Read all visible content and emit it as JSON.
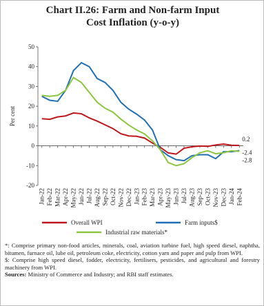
{
  "chart_data": {
    "type": "line",
    "title": "Chart II.26: Farm and Non-farm Input Cost Inflation (y-o-y)",
    "ylabel": "Per cent",
    "categories": [
      "Jan-22",
      "Feb-22",
      "Mar-22",
      "Apr-22",
      "May-22",
      "Jun-22",
      "Jul-22",
      "Aug-22",
      "Sep-22",
      "Oct-22",
      "Nov-22",
      "Dec-22",
      "Jan-23",
      "Feb-23",
      "Mar-23",
      "Apr-23",
      "May-23",
      "Jun-23",
      "Jul-23",
      "Aug-23",
      "Sep-23",
      "Oct-23",
      "Nov-23",
      "Dec-23",
      "Jan-24",
      "Feb-24"
    ],
    "series": [
      {
        "name": "Overall WPI",
        "color": "#c0161c",
        "values": [
          13.7,
          13.4,
          14.6,
          15.1,
          16.6,
          16.2,
          14.1,
          12.5,
          10.6,
          8.7,
          6.1,
          5.0,
          4.8,
          3.9,
          1.4,
          -0.8,
          -3.6,
          -4.2,
          -1.2,
          -0.5,
          -0.1,
          -0.3,
          0.4,
          0.9,
          0.3,
          0.2
        ]
      },
      {
        "name": "Farm inputs$",
        "color": "#1f6fb5",
        "values": [
          25,
          23,
          22.5,
          28,
          38,
          42,
          40,
          34,
          32,
          28,
          22,
          18.5,
          16,
          13,
          8,
          -2,
          -5,
          -7,
          -7.5,
          -5,
          -4.5,
          -4.5,
          -6.5,
          -3,
          -3,
          -2.4
        ]
      },
      {
        "name": "Industrial raw materials*",
        "color": "#8cc63f",
        "values": [
          25.5,
          25,
          25.5,
          28,
          34.5,
          32,
          27,
          22,
          19,
          17,
          13.5,
          10.5,
          8,
          6,
          2.5,
          -2,
          -8.5,
          -10,
          -9,
          -6,
          -3.5,
          -2.5,
          -4,
          -3.5,
          -2.5,
          -2.8
        ]
      }
    ],
    "ylim": [
      -20,
      50
    ],
    "yticks": [
      -20,
      -10,
      0,
      10,
      20,
      30,
      40,
      50
    ],
    "grid": false
  },
  "notes": [
    "*: Comprise primary non-food articles, minerals, coal, aviation turbine fuel, high speed diesel, naphtha, bitumen, furnace oil, lube oil, petroleum coke, electricity, cotton yarn and paper and pulp from WPI.",
    "$: Comprise high speed diesel, fodder, electricity, fertilisers, pesticides, and agricultural and forestry machinery from WPI."
  ],
  "sources_label": "Sources:",
  "sources": "Ministry of Commerce and Industry; and RBI staff estimates."
}
